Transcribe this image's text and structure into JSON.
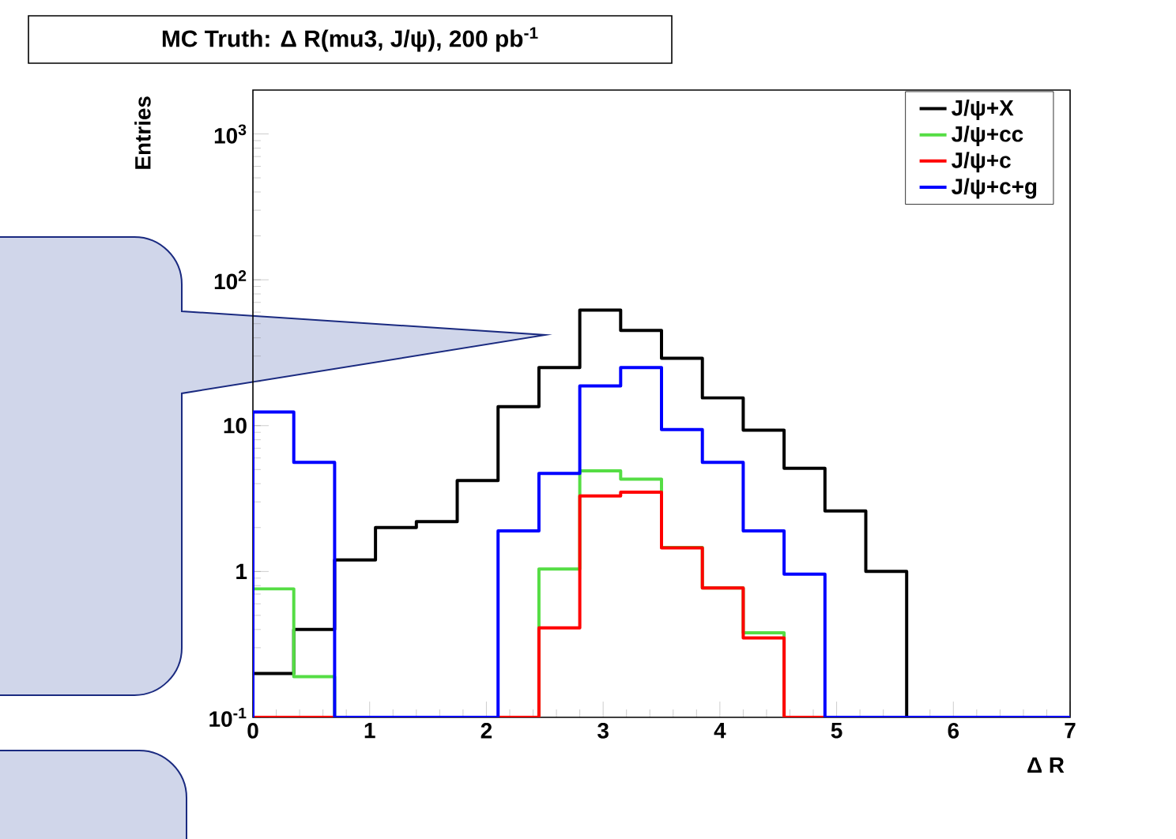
{
  "chart_data": {
    "type": "histogram",
    "title": "MC Truth: Δ R(mu3, J/ψ), 200 pb$^{-1}$",
    "xlabel": "Δ R",
    "ylabel": "Entries",
    "bins": [
      0,
      0.35,
      0.7,
      1.05,
      1.4,
      1.75,
      2.1,
      2.45,
      2.8,
      3.15,
      3.5,
      3.85,
      4.2,
      4.55,
      4.9,
      5.25,
      5.6,
      5.95,
      6.3,
      6.65,
      7.0
    ],
    "series": [
      {
        "name": "J/ψ+X",
        "color": "#000000",
        "values": [
          0.2,
          0.4,
          1.2,
          2.0,
          2.2,
          4.2,
          13.5,
          25,
          62,
          45,
          29,
          15.5,
          9.3,
          5.1,
          2.6,
          1.0,
          null,
          null,
          null,
          null
        ]
      },
      {
        "name": "J/ψ+cc",
        "color": "#55dd44",
        "values": [
          0.76,
          0.19,
          null,
          null,
          null,
          null,
          null,
          1.04,
          4.9,
          4.3,
          1.46,
          0.77,
          0.38,
          null,
          null,
          null,
          null,
          null,
          null,
          null
        ]
      },
      {
        "name": "J/ψ+c",
        "color": "#ff0000",
        "values": [
          null,
          null,
          null,
          null,
          null,
          null,
          null,
          0.41,
          3.3,
          3.5,
          1.45,
          0.77,
          0.35,
          null,
          null,
          null,
          null,
          null,
          null,
          null
        ]
      },
      {
        "name": "J/ψ+c+g",
        "color": "#0000ff",
        "values": [
          12.4,
          5.6,
          null,
          null,
          null,
          null,
          1.9,
          4.7,
          18.7,
          25,
          9.4,
          5.6,
          1.9,
          0.96,
          null,
          null,
          null,
          null,
          null,
          null
        ]
      }
    ],
    "xlim": [
      0,
      7
    ],
    "xticks": [
      0,
      1,
      2,
      3,
      4,
      5,
      6,
      7
    ],
    "ylim": [
      0.1,
      2000
    ],
    "log": true,
    "yticks": [
      {
        "value": 0.1,
        "label": "10$^{-1}$"
      },
      1,
      10,
      {
        "value": 100,
        "label": "10$^{2}$"
      },
      {
        "value": 1000,
        "label": "10$^{3}$"
      }
    ],
    "legend": "top right"
  }
}
